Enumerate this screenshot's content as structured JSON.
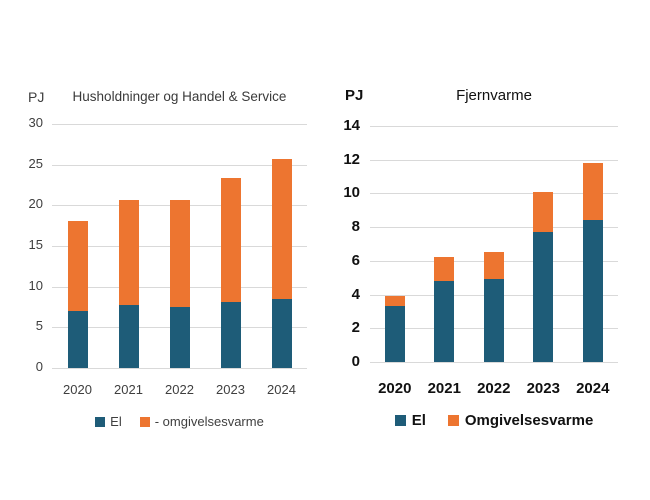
{
  "page": {
    "background": "#ffffff"
  },
  "colors": {
    "el": "#1E5C78",
    "omgivelsesvarme": "#ED7530",
    "gridline": "#D9D9D9",
    "left_text": "#3F3F3F",
    "right_text": "#111111"
  },
  "chart_data": [
    {
      "type": "bar",
      "stacked": true,
      "title": "Husholdninger og Handel & Service",
      "unit_label": "PJ",
      "categories": [
        "2020",
        "2021",
        "2022",
        "2023",
        "2024"
      ],
      "series": [
        {
          "name": "El",
          "color_key": "el",
          "values": [
            7.0,
            7.8,
            7.5,
            8.1,
            8.5
          ]
        },
        {
          "name": "- omgivelsesvarme",
          "color_key": "omgivelsesvarme",
          "values": [
            11.1,
            12.9,
            13.2,
            15.2,
            17.2
          ]
        }
      ],
      "totals": [
        18.1,
        20.7,
        20.7,
        23.3,
        25.7
      ],
      "ylim": [
        0,
        30
      ],
      "yticks": [
        0,
        5,
        10,
        15,
        20,
        25,
        30
      ],
      "grid": true,
      "legend_position": "bottom"
    },
    {
      "type": "bar",
      "stacked": true,
      "title": "Fjernvarme",
      "unit_label": "PJ",
      "categories": [
        "2020",
        "2021",
        "2022",
        "2023",
        "2024"
      ],
      "series": [
        {
          "name": "El",
          "color_key": "el",
          "values": [
            3.3,
            4.8,
            4.9,
            7.7,
            8.4
          ]
        },
        {
          "name": "Omgivelsesvarme",
          "color_key": "omgivelsesvarme",
          "values": [
            0.6,
            1.4,
            1.6,
            2.4,
            3.4
          ]
        }
      ],
      "totals": [
        3.9,
        6.2,
        6.5,
        10.1,
        11.8
      ],
      "ylim": [
        0,
        14
      ],
      "yticks": [
        0,
        2,
        4,
        6,
        8,
        10,
        12,
        14
      ],
      "grid": true,
      "legend_position": "bottom"
    }
  ]
}
